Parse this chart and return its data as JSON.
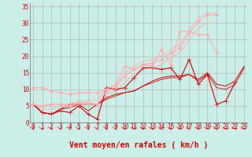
{
  "background_color": "#cceee8",
  "grid_color": "#aaaaaa",
  "xlabel": "Vent moyen/en rafales ( km/h )",
  "tick_color": "#cc0000",
  "yticks": [
    0,
    5,
    10,
    15,
    20,
    25,
    30,
    35
  ],
  "xticks": [
    0,
    1,
    2,
    3,
    4,
    5,
    6,
    7,
    8,
    9,
    10,
    11,
    12,
    13,
    14,
    15,
    16,
    17,
    18,
    19,
    20,
    21,
    22,
    23
  ],
  "xlim": [
    0,
    23
  ],
  "ylim": [
    0,
    36
  ],
  "lines": [
    {
      "x": [
        0,
        1,
        2,
        3,
        4,
        5,
        6,
        7,
        8,
        9,
        10,
        11,
        12,
        13,
        14,
        15,
        16,
        17,
        18,
        19,
        20,
        21,
        22
      ],
      "y": [
        5.5,
        3.0,
        2.5,
        3.5,
        3.0,
        5.0,
        2.5,
        1.0,
        10.5,
        10.0,
        10.5,
        13.5,
        16.5,
        16.5,
        16.0,
        16.5,
        13.0,
        19.0,
        11.5,
        14.5,
        5.5,
        6.5,
        12.0
      ],
      "color": "#cc0000",
      "marker": "+",
      "linewidth": 0.8,
      "markersize": 4
    },
    {
      "x": [
        0,
        1,
        2,
        3,
        4,
        5,
        6,
        7,
        8,
        9,
        10,
        11,
        12,
        13,
        14,
        15,
        16,
        17,
        18,
        19,
        20,
        21,
        22,
        23
      ],
      "y": [
        5.5,
        3.0,
        2.5,
        4.0,
        4.5,
        5.5,
        3.5,
        5.5,
        7.5,
        8.5,
        9.0,
        9.5,
        11.0,
        12.5,
        13.5,
        14.0,
        14.0,
        14.5,
        13.0,
        15.0,
        11.5,
        11.0,
        12.5,
        17.0
      ],
      "color": "#cc0000",
      "marker": null,
      "linewidth": 0.7,
      "markersize": 0
    },
    {
      "x": [
        0,
        1,
        2,
        3,
        4,
        5,
        6,
        7,
        8,
        9,
        10,
        11,
        12,
        13,
        14,
        15,
        16,
        17,
        18,
        19,
        20,
        21,
        22,
        23
      ],
      "y": [
        5.5,
        3.0,
        2.5,
        4.0,
        5.5,
        5.5,
        5.5,
        5.5,
        7.0,
        8.0,
        9.0,
        9.5,
        11.0,
        12.0,
        13.0,
        13.5,
        13.5,
        14.5,
        12.5,
        14.5,
        10.5,
        10.0,
        11.5,
        16.5
      ],
      "color": "#cc0000",
      "marker": null,
      "linewidth": 0.6,
      "markersize": 0
    },
    {
      "x": [
        0,
        1,
        2,
        3,
        4,
        5,
        6,
        7,
        8,
        9,
        10,
        11,
        12,
        13,
        14,
        15,
        16,
        17,
        18,
        19,
        20
      ],
      "y": [
        10.5,
        10.5,
        9.5,
        9.0,
        8.5,
        9.0,
        9.0,
        9.0,
        10.0,
        11.5,
        17.0,
        16.0,
        17.5,
        17.0,
        22.0,
        17.5,
        27.5,
        27.5,
        26.5,
        26.5,
        21.0
      ],
      "color": "#ffaaaa",
      "marker": "D",
      "linewidth": 0.8,
      "markersize": 2
    },
    {
      "x": [
        0,
        1,
        2,
        3,
        4,
        5,
        6,
        7,
        8,
        9,
        10,
        11,
        12,
        13,
        14,
        15,
        16,
        17,
        18,
        19,
        20
      ],
      "y": [
        5.5,
        5.0,
        5.5,
        5.5,
        5.0,
        6.0,
        6.0,
        5.5,
        9.5,
        10.5,
        14.0,
        16.0,
        17.5,
        18.0,
        19.0,
        21.0,
        22.5,
        27.0,
        30.5,
        32.5,
        32.5
      ],
      "color": "#ffaaaa",
      "marker": "D",
      "linewidth": 0.8,
      "markersize": 2
    },
    {
      "x": [
        0,
        1,
        2,
        3,
        4,
        5,
        6,
        7,
        8,
        9,
        10,
        11,
        12,
        13,
        14,
        15,
        16,
        17,
        18,
        19,
        20
      ],
      "y": [
        5.5,
        5.0,
        5.5,
        5.5,
        5.5,
        6.5,
        6.5,
        7.0,
        10.0,
        11.0,
        15.0,
        17.0,
        18.5,
        19.0,
        20.0,
        22.0,
        23.5,
        28.0,
        31.5,
        33.0,
        33.0
      ],
      "color": "#ffaaaa",
      "marker": null,
      "linewidth": 0.6,
      "markersize": 0
    },
    {
      "x": [
        0,
        1,
        2,
        3,
        4,
        5,
        6,
        7,
        8,
        9,
        10,
        11,
        12,
        13,
        14,
        15,
        16,
        17,
        18,
        19,
        20
      ],
      "y": [
        5.5,
        4.0,
        4.0,
        4.5,
        5.0,
        5.5,
        5.5,
        5.5,
        8.5,
        9.5,
        12.0,
        14.5,
        16.0,
        16.5,
        17.5,
        19.5,
        21.0,
        25.0,
        28.5,
        30.0,
        30.0
      ],
      "color": "#ffaaaa",
      "marker": null,
      "linewidth": 0.6,
      "markersize": 0
    }
  ],
  "tick_fontsize": 5.5,
  "label_fontsize": 7,
  "label_fontweight": "bold"
}
